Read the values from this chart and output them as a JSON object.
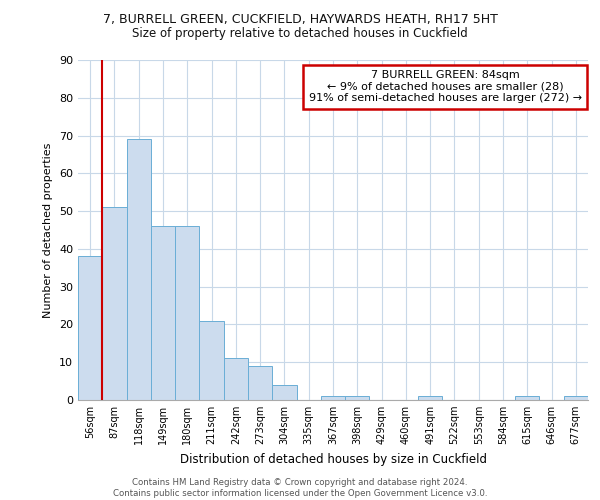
{
  "title_line1": "7, BURRELL GREEN, CUCKFIELD, HAYWARDS HEATH, RH17 5HT",
  "title_line2": "Size of property relative to detached houses in Cuckfield",
  "xlabel": "Distribution of detached houses by size in Cuckfield",
  "ylabel": "Number of detached properties",
  "bar_labels": [
    "56sqm",
    "87sqm",
    "118sqm",
    "149sqm",
    "180sqm",
    "211sqm",
    "242sqm",
    "273sqm",
    "304sqm",
    "335sqm",
    "367sqm",
    "398sqm",
    "429sqm",
    "460sqm",
    "491sqm",
    "522sqm",
    "553sqm",
    "584sqm",
    "615sqm",
    "646sqm",
    "677sqm"
  ],
  "bar_values": [
    38,
    51,
    69,
    46,
    46,
    21,
    11,
    9,
    4,
    0,
    1,
    1,
    0,
    0,
    1,
    0,
    0,
    0,
    1,
    0,
    1
  ],
  "bar_color": "#ccdcee",
  "bar_edge_color": "#6aaed6",
  "highlight_line_color": "#cc0000",
  "annotation_text": "7 BURRELL GREEN: 84sqm\n← 9% of detached houses are smaller (28)\n91% of semi-detached houses are larger (272) →",
  "annotation_box_color": "#ffffff",
  "annotation_box_edge_color": "#cc0000",
  "ylim": [
    0,
    90
  ],
  "yticks": [
    0,
    10,
    20,
    30,
    40,
    50,
    60,
    70,
    80,
    90
  ],
  "footer_text": "Contains HM Land Registry data © Crown copyright and database right 2024.\nContains public sector information licensed under the Open Government Licence v3.0.",
  "background_color": "#ffffff",
  "grid_color": "#c8d8e8"
}
